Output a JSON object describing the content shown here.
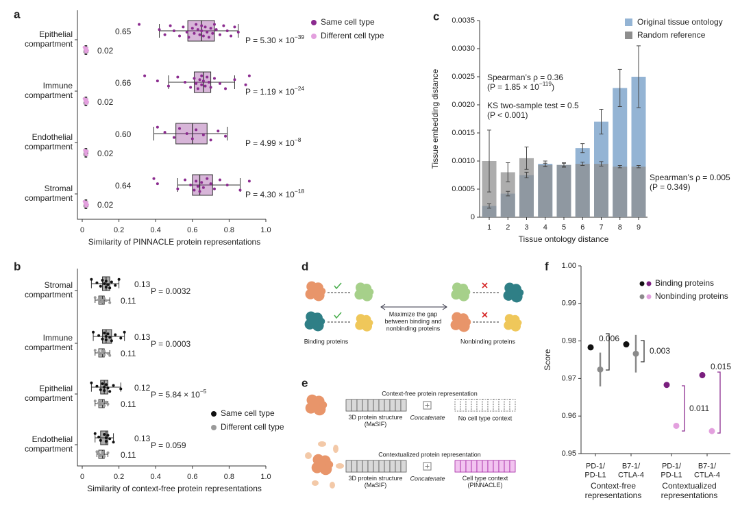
{
  "chart_data": [
    {
      "panel": "a",
      "type": "box",
      "categories": [
        "Epithelial\ncompartment",
        "Immune\ncompartment",
        "Endothelial\ncompartment",
        "Stromal\ncompartment"
      ],
      "series": [
        {
          "name": "Same cell type",
          "color": "#8b2b8f",
          "values": [
            0.65,
            0.66,
            0.6,
            0.64
          ],
          "value_labels": [
            "0.65",
            "0.66",
            "0.60",
            "0.64"
          ],
          "q1": [
            0.575,
            0.61,
            0.51,
            0.6
          ],
          "q3": [
            0.72,
            0.7,
            0.68,
            0.71
          ],
          "whisker_low": [
            0.42,
            0.47,
            0.39,
            0.52
          ],
          "whisker_high": [
            0.85,
            0.83,
            0.79,
            0.86
          ],
          "points": [
            [
              0.31,
              0.42,
              0.45,
              0.48,
              0.5,
              0.53,
              0.55,
              0.57,
              0.58,
              0.6,
              0.61,
              0.62,
              0.63,
              0.64,
              0.65,
              0.65,
              0.66,
              0.67,
              0.68,
              0.69,
              0.7,
              0.71,
              0.72,
              0.73,
              0.75,
              0.77,
              0.79,
              0.81,
              0.83,
              0.85
            ],
            [
              0.34,
              0.41,
              0.47,
              0.52,
              0.56,
              0.59,
              0.61,
              0.62,
              0.63,
              0.64,
              0.65,
              0.65,
              0.66,
              0.67,
              0.68,
              0.69,
              0.7,
              0.72,
              0.75,
              0.78,
              0.83,
              0.89,
              0.91
            ],
            [
              0.41,
              0.45,
              0.5,
              0.53,
              0.57,
              0.6,
              0.62,
              0.66,
              0.7,
              0.74,
              0.78
            ],
            [
              0.39,
              0.41,
              0.52,
              0.56,
              0.59,
              0.61,
              0.62,
              0.63,
              0.64,
              0.65,
              0.66,
              0.68,
              0.7,
              0.72,
              0.75,
              0.79,
              0.86,
              0.91
            ]
          ]
        },
        {
          "name": "Different cell type",
          "color": "#e3a0de",
          "values": [
            0.02,
            0.02,
            0.02,
            0.02
          ],
          "q1": [
            0.015,
            0.015,
            0.015,
            0.015
          ],
          "q3": [
            0.025,
            0.025,
            0.025,
            0.025
          ],
          "whisker_low": [
            0.01,
            0.01,
            0.01,
            0.01
          ],
          "whisker_high": [
            0.03,
            0.03,
            0.03,
            0.03
          ],
          "points": [
            [
              0.01,
              0.015,
              0.018,
              0.02,
              0.02,
              0.022,
              0.025,
              0.03
            ],
            [
              0.01,
              0.014,
              0.018,
              0.02,
              0.021,
              0.023,
              0.026,
              0.03
            ],
            [
              0.012,
              0.016,
              0.019,
              0.02,
              0.022,
              0.025,
              0.028
            ],
            [
              0.01,
              0.015,
              0.018,
              0.02,
              0.02,
              0.022,
              0.025,
              0.03
            ]
          ]
        }
      ],
      "p_values": [
        {
          "text": "P = 5.30 × 10",
          "exp": "−39"
        },
        {
          "text": "P = 1.19 × 10",
          "exp": "−24"
        },
        {
          "text": "P = 4.99 × 10",
          "exp": "−8"
        },
        {
          "text": "P = 4.30 × 10",
          "exp": "−18"
        }
      ],
      "xlabel": "Similarity of PINNACLE protein representations",
      "xlim": [
        0,
        1
      ],
      "xticks": [
        0,
        0.2,
        0.4,
        0.6,
        0.8,
        {
          "value": 1,
          "label": "1.0"
        }
      ]
    },
    {
      "panel": "b",
      "type": "box",
      "categories": [
        "Stromal\ncompartment",
        "Immune\ncompartment",
        "Epithelial\ncompartment",
        "Endothelial\ncompartment"
      ],
      "series": [
        {
          "name": "Same cell type",
          "color": "#111111",
          "values": [
            0.13,
            0.13,
            0.12,
            0.13
          ],
          "q1": [
            0.11,
            0.11,
            0.1,
            0.1
          ],
          "q3": [
            0.15,
            0.16,
            0.14,
            0.14
          ],
          "whisker_low": [
            0.05,
            0.06,
            0.05,
            0.07
          ],
          "whisker_high": [
            0.2,
            0.23,
            0.21,
            0.17
          ],
          "points": [
            [
              0.05,
              0.08,
              0.1,
              0.11,
              0.12,
              0.13,
              0.13,
              0.14,
              0.15,
              0.16,
              0.18,
              0.2
            ],
            [
              0.06,
              0.09,
              0.11,
              0.12,
              0.13,
              0.13,
              0.14,
              0.15,
              0.16,
              0.18,
              0.21,
              0.23
            ],
            [
              0.05,
              0.08,
              0.1,
              0.11,
              0.12,
              0.12,
              0.13,
              0.14,
              0.15,
              0.17,
              0.21
            ],
            [
              0.07,
              0.09,
              0.1,
              0.12,
              0.13,
              0.13,
              0.14,
              0.15,
              0.17
            ]
          ]
        },
        {
          "name": "Different cell type",
          "color": "#9a9a9a",
          "values": [
            0.11,
            0.11,
            0.11,
            0.11
          ],
          "q1": [
            0.09,
            0.09,
            0.09,
            0.09
          ],
          "q3": [
            0.12,
            0.12,
            0.12,
            0.12
          ],
          "whisker_low": [
            0.07,
            0.07,
            0.07,
            0.08
          ],
          "whisker_high": [
            0.15,
            0.15,
            0.14,
            0.14
          ],
          "points": [
            [
              0.07,
              0.09,
              0.1,
              0.1,
              0.11,
              0.11,
              0.12,
              0.13,
              0.15
            ],
            [
              0.07,
              0.09,
              0.1,
              0.11,
              0.11,
              0.12,
              0.12,
              0.14,
              0.15
            ],
            [
              0.07,
              0.09,
              0.1,
              0.1,
              0.11,
              0.12,
              0.13,
              0.14
            ],
            [
              0.08,
              0.09,
              0.1,
              0.11,
              0.11,
              0.12,
              0.14
            ]
          ]
        }
      ],
      "p_values": [
        {
          "text": "P = 0.0032"
        },
        {
          "text": "P = 0.0003"
        },
        {
          "text": "P = 5.84 × 10",
          "exp": "−5"
        },
        {
          "text": "P = 0.059"
        }
      ],
      "xlabel": "Similarity of context-free protein representations",
      "xlim": [
        0,
        1
      ],
      "xticks": [
        0,
        0.2,
        0.4,
        0.6,
        0.8,
        {
          "value": 1,
          "label": "1.0"
        }
      ]
    },
    {
      "panel": "c",
      "type": "bar",
      "categories": [
        "1",
        "2",
        "3",
        "4",
        "5",
        "6",
        "7",
        "8",
        "9"
      ],
      "series": [
        {
          "name": "Original tissue ontology",
          "color": "#94b4d4",
          "values": [
            0.0002,
            0.00042,
            0.00075,
            0.00095,
            0.00093,
            0.00123,
            0.0017,
            0.0023,
            0.0025
          ],
          "errors": [
            4e-05,
            4e-05,
            5e-05,
            5e-05,
            4e-05,
            8e-05,
            0.00022,
            0.00033,
            0.00055
          ]
        },
        {
          "name": "Random reference",
          "color": "#8e8e8e",
          "values": [
            0.001,
            0.0008,
            0.00105,
            0.00093,
            0.00093,
            0.00095,
            0.00095,
            0.0009,
            0.0009
          ],
          "errors": [
            0.00055,
            0.00017,
            0.0002,
            3e-05,
            3e-05,
            3e-05,
            4e-05,
            2e-05,
            2e-05
          ]
        }
      ],
      "annotations": [
        {
          "text": "Spearman’s ρ = 0.36",
          "color": "#3d78b8"
        },
        {
          "text": "(P = 1.85 × 10",
          "exp": "−119",
          "tail": ")",
          "color": "#3d78b8"
        },
        {
          "text": "KS two-sample test = 0.5",
          "color": "#3d78b8"
        },
        {
          "text": "(P < 0.001)",
          "color": "#3d78b8"
        },
        {
          "text": "Spearman’s ρ = 0.005",
          "color": "#9a9a9a"
        },
        {
          "text": "(P = 0.349)",
          "color": "#9a9a9a"
        }
      ],
      "xlabel": "Tissue ontology distance",
      "ylabel": "Tissue embedding distance",
      "ylim": [
        0,
        0.0035
      ],
      "yticks": [
        0,
        0.0005,
        {
          "value": 0.001,
          "label": "0.0010"
        },
        0.0015,
        {
          "value": 0.002,
          "label": "0.0020"
        },
        0.0025,
        {
          "value": 0.003,
          "label": "0.0030"
        },
        0.0035
      ]
    },
    {
      "panel": "f",
      "type": "dot_error",
      "categories": [
        "PD-1/\nPD-L1",
        "B7-1/\nCTLA-4",
        "PD-1/\nPD-L1",
        "B7-1/\nCTLA-4"
      ],
      "group_labels": [
        "Context-free\nrepresentations",
        "Contextualized\nrepresentations"
      ],
      "series": [
        {
          "name": "Binding proteins",
          "colors": [
            "#111111",
            "#111111",
            "#7a1f7e",
            "#7a1f7e"
          ],
          "values": [
            0.9783,
            0.9791,
            0.9683,
            0.9709
          ],
          "errors": [
            0.0003,
            0.0003,
            0.0006,
            0.0008
          ]
        },
        {
          "name": "Nonbinding proteins",
          "colors": [
            "#8a8a8a",
            "#8a8a8a",
            "#e3a0de",
            "#e3a0de"
          ],
          "values": [
            0.9724,
            0.9766,
            0.9574,
            0.956
          ],
          "errors": [
            0.0045,
            0.005,
            0.0003,
            0.0003
          ]
        }
      ],
      "annotations": [
        "0.006",
        "0.003",
        "0.011",
        "0.015"
      ],
      "ylabel": "Score",
      "ylim": [
        0.95,
        1.0
      ],
      "yticks": [
        0.95,
        0.96,
        0.97,
        0.98,
        0.99,
        {
          "value": 1.0,
          "label": "1.00"
        }
      ]
    }
  ],
  "diagram_d": {
    "panel": "d",
    "center": "Maximize the gap\nbetween binding and\nnonbinding proteins",
    "left": "Binding proteins",
    "right": "Nonbinding proteins"
  },
  "diagram_e": {
    "panel": "e",
    "context_free": {
      "title": "Context-free protein representation",
      "structure": "3D protein structure\n(MaSIF)",
      "join": "Concatenate",
      "context": "No cell type context"
    },
    "contextualized": {
      "title": "Contextualized protein representation",
      "structure": "3D protein structure\n(MaSIF)",
      "join": "Concatenate",
      "context": "Cell type context\n(PINNACLE)"
    }
  }
}
